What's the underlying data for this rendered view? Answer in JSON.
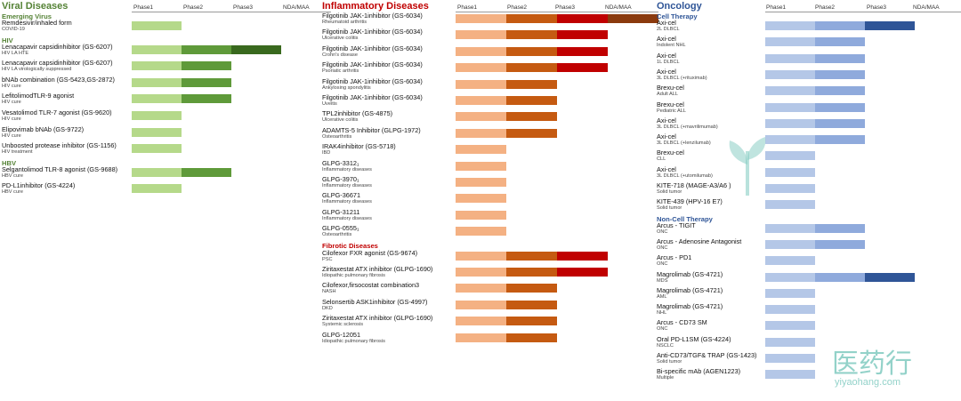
{
  "colors": {
    "viral": [
      "#b5d98a",
      "#5f9a3a",
      "#39691e",
      "#39691e"
    ],
    "inflammatory": [
      "#f4b183",
      "#c55a11",
      "#c00000",
      "#8b3a0e"
    ],
    "oncology": [
      "#b4c7e7",
      "#8faadc",
      "#2f5597",
      "#2f5597"
    ],
    "viral_title": "#548235",
    "inflammatory_title": "#c00000",
    "oncology_title": "#2f5597"
  },
  "watermark": {
    "text": "医药行",
    "url": "yiyaohang.com"
  },
  "chart_data": [
    {
      "type": "bar",
      "title": "Viral Diseases",
      "phases": [
        "Phase1",
        "Phase2",
        "Phase3",
        "NDA/MAA"
      ],
      "items": [
        {
          "section": "Emerging Virus"
        },
        {
          "name": "Remdesivir/inhaled form",
          "indication": "COVID-19",
          "stage": 1
        },
        {
          "section": "HIV"
        },
        {
          "name": "Lenacapavir capsidinhibitor (GS-6207)",
          "indication": "HIV LA HTE",
          "stage": 3
        },
        {
          "name": "Lenacapavir capsidinhibitor (GS-6207)",
          "indication": "HIV LA virologically suppressed",
          "stage": 2
        },
        {
          "name": "bNAb combination (GS-5423,GS-2872)",
          "indication": "HIV cure",
          "stage": 2
        },
        {
          "name": "LefitolimodTLR-9 agonist",
          "indication": "HIV cure",
          "stage": 2
        },
        {
          "name": "Vesatolimod TLR-7 agonist (GS-9620)",
          "indication": "HIV cure",
          "stage": 1
        },
        {
          "name": "Elipovimab bNAb (GS-9722)",
          "indication": "HIV cure",
          "stage": 1
        },
        {
          "name": "Unboosted protease inhibitor (GS-1156)",
          "indication": "HIV treatment",
          "stage": 1
        },
        {
          "section": "HBV"
        },
        {
          "name": "Selgantolimod TLR-8 agonist (GS-9688)",
          "indication": "HBV cure",
          "stage": 2
        },
        {
          "name": "PD-L1inhibitor (GS-4224)",
          "indication": "HBV cure",
          "stage": 1
        }
      ]
    },
    {
      "type": "bar",
      "title": "Inflammatory Diseases",
      "phases": [
        "Phase1",
        "Phase2",
        "Phase3",
        "NDA/MAA"
      ],
      "items": [
        {
          "name": "Filgotinib JAK-1inhibitor (GS-6034)",
          "indication": "Rheumatoid arthritis",
          "stage": 4
        },
        {
          "name": "Filgotinib JAK-1inhibitor (GS-6034)",
          "indication": "Ulcerative colitis",
          "stage": 3
        },
        {
          "name": "Filgotinib JAK-1inhibitor (GS-6034)",
          "indication": "Crohn's disease",
          "stage": 3
        },
        {
          "name": "Filgotinib JAK-1inhibitor (GS-6034)",
          "indication": "Psoriatic arthritis",
          "stage": 3
        },
        {
          "name": "Filgotinib JAK-1inhibitor (GS-6034)",
          "indication": "Ankylosing spondylitis",
          "stage": 2
        },
        {
          "name": "Filgotinib JAK-1inhibitor (GS-6034)",
          "indication": "Uveitis",
          "stage": 2
        },
        {
          "name": "TPL2inhibitor (GS-4875)",
          "indication": "Ulcerative colitis",
          "stage": 2
        },
        {
          "name": "ADAMTS-5 Inhibitor (GLPG-1972)",
          "indication": "Osteoarthritis",
          "stage": 2
        },
        {
          "name": "IRAK4inhibitor (GS-5718)",
          "indication": "IBD",
          "stage": 1
        },
        {
          "name": "GLPG-3312₁",
          "indication": "Inflammatory diseases",
          "stage": 1
        },
        {
          "name": "GLPG-3970₁",
          "indication": "Inflammatory diseases",
          "stage": 1
        },
        {
          "name": "GLPG-36671",
          "indication": "Inflammatory diseases",
          "stage": 1
        },
        {
          "name": "GLPG-31211",
          "indication": "Inflammatory diseases",
          "stage": 1
        },
        {
          "name": "GLPG-0555₁",
          "indication": "Osteoarthritis",
          "stage": 1
        },
        {
          "section": "Fibrotic Diseases"
        },
        {
          "name": "Cilofexor FXR agonist (GS-9674)",
          "indication": "PSC",
          "stage": 3
        },
        {
          "name": "Ziritaxestat ATX inhibitor (GLPG-1690)",
          "indication": "Idiopathic pulmonary fibrosis",
          "stage": 3
        },
        {
          "name": "Cilofexor,firsocostat combination3",
          "indication": "NASH",
          "stage": 2
        },
        {
          "name": "Selonsertib ASK1inhibitor (GS-4997)",
          "indication": "DKD",
          "stage": 2
        },
        {
          "name": "Ziritaxestat ATX inhibitor (GLPG-1690)",
          "indication": "Systemic sclerosis",
          "stage": 2
        },
        {
          "name": "GLPG-12051",
          "indication": "Idiopathic pulmonary fibrosis",
          "stage": 2
        }
      ]
    },
    {
      "type": "bar",
      "title": "Oncology",
      "phases": [
        "Phase1",
        "Phase2",
        "Phase3",
        "NDA/MAA"
      ],
      "items": [
        {
          "section": "Cell Therapy"
        },
        {
          "name": "Axi-cel",
          "indication": "2L DLBCL",
          "stage": 3
        },
        {
          "name": "Axi-cel",
          "indication": "Indolent NHL",
          "stage": 2
        },
        {
          "name": "Axi-cel",
          "indication": "1L DLBCL",
          "stage": 2
        },
        {
          "name": "Axi-cel",
          "indication": "3L DLBCL (+rituximab)",
          "stage": 2
        },
        {
          "name": "Brexu-cel",
          "indication": "Adult ALL",
          "stage": 2
        },
        {
          "name": "Brexu-cel",
          "indication": "Pediatric ALL",
          "stage": 2
        },
        {
          "name": "Axi-cel",
          "indication": "3L DLBCL (+mavrilimumab)",
          "stage": 2
        },
        {
          "name": "Axi-cel",
          "indication": "3L DLBCL (+lenzilumab)",
          "stage": 2
        },
        {
          "name": "Brexu-cel",
          "indication": "CLL",
          "stage": 1
        },
        {
          "name": "Axi-cel",
          "indication": "3L DLBCL (+utomilumab)",
          "stage": 1
        },
        {
          "name": "KITE-718 (MAGE-A3/A6 )",
          "indication": "Solid tumor",
          "stage": 1
        },
        {
          "name": "KITE-439 (HPV-16 E7)",
          "indication": "Solid tumor",
          "stage": 1
        },
        {
          "section": "Non-Cell Therapy"
        },
        {
          "name": "Arcus - TIGIT",
          "indication": "ONC",
          "stage": 2
        },
        {
          "name": "Arcus - Adenosine Antagonist",
          "indication": "ONC",
          "stage": 2
        },
        {
          "name": "Arcus - PD1",
          "indication": "ONC",
          "stage": 1
        },
        {
          "name": "Magrolimab (GS-4721)",
          "indication": "MDS",
          "stage": 3
        },
        {
          "name": "Magrolimab (GS-4721)",
          "indication": "AML",
          "stage": 1
        },
        {
          "name": "Magrolimab (GS-4721)",
          "indication": "NHL",
          "stage": 1
        },
        {
          "name": "Arcus - CD73 SM",
          "indication": "ONC",
          "stage": 1
        },
        {
          "name": "Oral PD-L1SM (GS-4224)",
          "indication": "NSCLC",
          "stage": 1
        },
        {
          "name": "Anti-CD73/TGF& TRAP (GS-1423)",
          "indication": "Solid tumor",
          "stage": 1
        },
        {
          "name": "Bi-specific mAb (AGEN1223)",
          "indication": "Multiple",
          "stage": 1
        }
      ]
    }
  ]
}
